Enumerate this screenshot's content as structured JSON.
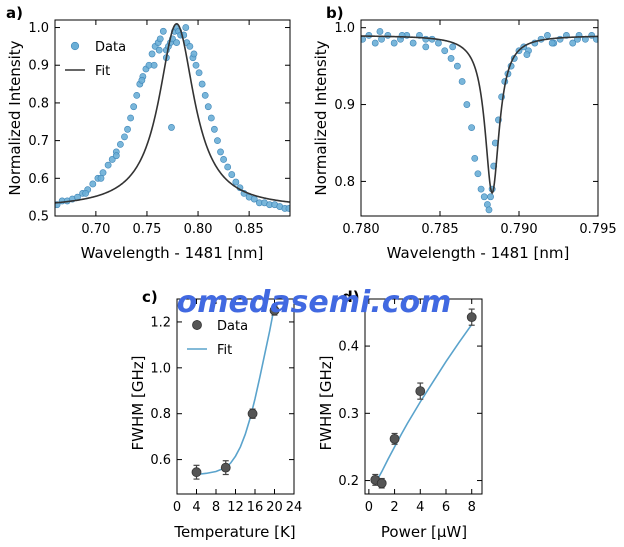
{
  "watermark": "omedasemi.com",
  "colors": {
    "scatter": "#6aaed6",
    "scatter_edge": "#3f86b8",
    "fit_dark": "#333333",
    "fit_blue": "#5aa3cc",
    "errpoint": "#555555",
    "watermark": "#4169e1"
  },
  "chart_data": [
    {
      "panel": "a)",
      "type": "scatter",
      "xlabel": "Wavelength - 1481 [nm]",
      "ylabel": "Normalized Intensity",
      "xlim": [
        0.66,
        0.89
      ],
      "ylim": [
        0.5,
        1.02
      ],
      "xticks": [
        0.7,
        0.75,
        0.8,
        0.85
      ],
      "xtick_labels": [
        "0.70",
        "0.75",
        "0.80",
        "0.85"
      ],
      "yticks": [
        0.5,
        0.6,
        0.7,
        0.8,
        0.9,
        1.0
      ],
      "ytick_labels": [
        "0.5",
        "0.6",
        "0.7",
        "0.8",
        "0.9",
        "1.0"
      ],
      "legend": {
        "placement": "top-left",
        "entries": [
          "Data",
          "Fit"
        ]
      },
      "series": [
        {
          "name": "Data",
          "kind": "scatter",
          "x": [
            0.662,
            0.667,
            0.672,
            0.677,
            0.682,
            0.687,
            0.692,
            0.697,
            0.702,
            0.707,
            0.712,
            0.716,
            0.72,
            0.724,
            0.728,
            0.731,
            0.734,
            0.737,
            0.74,
            0.743,
            0.746,
            0.749,
            0.752,
            0.755,
            0.758,
            0.761,
            0.763,
            0.766,
            0.769,
            0.771,
            0.773,
            0.775,
            0.777,
            0.779,
            0.781,
            0.783,
            0.786,
            0.789,
            0.792,
            0.795,
            0.798,
            0.801,
            0.804,
            0.807,
            0.81,
            0.813,
            0.816,
            0.819,
            0.822,
            0.825,
            0.829,
            0.833,
            0.837,
            0.841,
            0.845,
            0.85,
            0.855,
            0.86,
            0.865,
            0.87,
            0.875,
            0.88,
            0.885,
            0.889,
            0.745,
            0.757,
            0.762,
            0.769,
            0.774,
            0.779,
            0.788,
            0.796,
            0.72,
            0.705,
            0.69
          ],
          "y": [
            0.53,
            0.54,
            0.54,
            0.545,
            0.55,
            0.56,
            0.57,
            0.585,
            0.6,
            0.615,
            0.635,
            0.65,
            0.67,
            0.69,
            0.71,
            0.73,
            0.76,
            0.79,
            0.82,
            0.85,
            0.87,
            0.89,
            0.9,
            0.93,
            0.95,
            0.96,
            0.97,
            0.99,
            0.94,
            0.95,
            0.96,
            0.97,
            0.99,
            1.0,
            0.99,
            0.98,
            0.98,
            0.96,
            0.95,
            0.92,
            0.9,
            0.88,
            0.85,
            0.82,
            0.79,
            0.76,
            0.73,
            0.7,
            0.67,
            0.65,
            0.63,
            0.61,
            0.59,
            0.575,
            0.56,
            0.55,
            0.545,
            0.535,
            0.535,
            0.53,
            0.53,
            0.525,
            0.52,
            0.52,
            0.86,
            0.9,
            0.94,
            0.92,
            0.735,
            0.96,
            1.0,
            0.93,
            0.66,
            0.6,
            0.56
          ]
        },
        {
          "name": "Fit",
          "kind": "line",
          "model": "lorentzian",
          "x0": 0.779,
          "gamma": 0.042,
          "amplitude": 0.49,
          "offset": 0.52
        }
      ]
    },
    {
      "panel": "b)",
      "type": "scatter",
      "xlabel": "Wavelength - 1481 [nm]",
      "ylabel": "Normalized Intensity",
      "xlim": [
        0.78,
        0.795
      ],
      "ylim": [
        0.755,
        1.01
      ],
      "xticks": [
        0.78,
        0.785,
        0.79,
        0.795
      ],
      "xtick_labels": [
        "0.780",
        "0.785",
        "0.790",
        "0.795"
      ],
      "yticks": [
        0.8,
        0.9,
        1.0
      ],
      "ytick_labels": [
        "0.8",
        "0.9",
        "1.0"
      ],
      "series": [
        {
          "name": "Data",
          "kind": "scatter",
          "x": [
            0.7801,
            0.7805,
            0.7809,
            0.7813,
            0.7817,
            0.7821,
            0.7825,
            0.7829,
            0.7833,
            0.7837,
            0.7841,
            0.7845,
            0.7849,
            0.7853,
            0.7857,
            0.7861,
            0.7864,
            0.7867,
            0.787,
            0.7872,
            0.7874,
            0.7876,
            0.7878,
            0.788,
            0.7881,
            0.7882,
            0.7883,
            0.7884,
            0.7885,
            0.7887,
            0.7889,
            0.7891,
            0.7893,
            0.7895,
            0.7897,
            0.79,
            0.7903,
            0.7906,
            0.791,
            0.7914,
            0.7918,
            0.7922,
            0.7926,
            0.793,
            0.7934,
            0.7938,
            0.7942,
            0.7946,
            0.7949,
            0.7812,
            0.7826,
            0.7841,
            0.7858,
            0.7905,
            0.7921,
            0.7937
          ],
          "y": [
            0.985,
            0.99,
            0.98,
            0.985,
            0.99,
            0.98,
            0.985,
            0.99,
            0.98,
            0.99,
            0.975,
            0.985,
            0.98,
            0.97,
            0.96,
            0.95,
            0.93,
            0.9,
            0.87,
            0.83,
            0.81,
            0.79,
            0.78,
            0.77,
            0.763,
            0.78,
            0.79,
            0.82,
            0.85,
            0.88,
            0.91,
            0.93,
            0.94,
            0.95,
            0.96,
            0.97,
            0.975,
            0.97,
            0.98,
            0.985,
            0.99,
            0.98,
            0.985,
            0.99,
            0.98,
            0.99,
            0.985,
            0.99,
            0.985,
            0.995,
            0.99,
            0.985,
            0.975,
            0.965,
            0.98,
            0.985
          ]
        },
        {
          "name": "Fit",
          "kind": "line",
          "model": "lorentzian_dip",
          "x0": 0.7883,
          "gamma": 0.0011,
          "depth": 0.205,
          "offset": 0.99
        }
      ]
    },
    {
      "panel": "c)",
      "type": "scatter",
      "xlabel": "Temperature [K]",
      "ylabel": "FWHM [GHz]",
      "xlim": [
        0,
        24
      ],
      "ylim": [
        0.45,
        1.3
      ],
      "xticks": [
        0,
        4,
        8,
        12,
        16,
        20,
        24
      ],
      "xtick_labels": [
        "0",
        "4",
        "8",
        "12",
        "16",
        "20",
        "24"
      ],
      "yticks": [
        0.6,
        0.8,
        1.0,
        1.2
      ],
      "ytick_labels": [
        "0.6",
        "0.8",
        "1.0",
        "1.2"
      ],
      "legend": {
        "placement": "top-left",
        "entries": [
          "Data",
          "Fit"
        ]
      },
      "series": [
        {
          "name": "Data",
          "kind": "errorbar",
          "x": [
            4,
            10,
            15.5,
            20
          ],
          "y": [
            0.545,
            0.565,
            0.8,
            1.25
          ],
          "yerr": [
            0.03,
            0.03,
            0.02,
            0.02
          ]
        },
        {
          "name": "Fit",
          "kind": "line",
          "x": [
            4,
            6,
            8,
            10,
            11,
            12,
            13,
            14,
            15,
            16,
            17,
            18,
            19,
            20
          ],
          "y": [
            0.535,
            0.54,
            0.548,
            0.565,
            0.585,
            0.615,
            0.655,
            0.71,
            0.78,
            0.865,
            0.96,
            1.06,
            1.16,
            1.27
          ]
        }
      ]
    },
    {
      "panel": "d)",
      "type": "scatter",
      "xlabel": "Power [μW]",
      "ylabel": "FWHM [GHz]",
      "xlim": [
        -0.3,
        8.8
      ],
      "ylim": [
        0.18,
        0.47
      ],
      "xticks": [
        0,
        2,
        4,
        6,
        8
      ],
      "xtick_labels": [
        "0",
        "2",
        "4",
        "6",
        "8"
      ],
      "yticks": [
        0.2,
        0.3,
        0.4
      ],
      "ytick_labels": [
        "0.2",
        "0.3",
        "0.4"
      ],
      "series": [
        {
          "name": "Data",
          "kind": "errorbar",
          "x": [
            0.5,
            1,
            2,
            4,
            8
          ],
          "y": [
            0.201,
            0.196,
            0.262,
            0.333,
            0.443
          ],
          "yerr": [
            0.008,
            0.007,
            0.008,
            0.012,
            0.012
          ]
        },
        {
          "name": "Fit",
          "kind": "line",
          "x": [
            0.5,
            1,
            1.5,
            2,
            2.5,
            3,
            3.5,
            4,
            5,
            6,
            7,
            8
          ],
          "y": [
            0.196,
            0.213,
            0.232,
            0.25,
            0.268,
            0.285,
            0.301,
            0.317,
            0.347,
            0.377,
            0.405,
            0.432
          ]
        }
      ]
    }
  ]
}
